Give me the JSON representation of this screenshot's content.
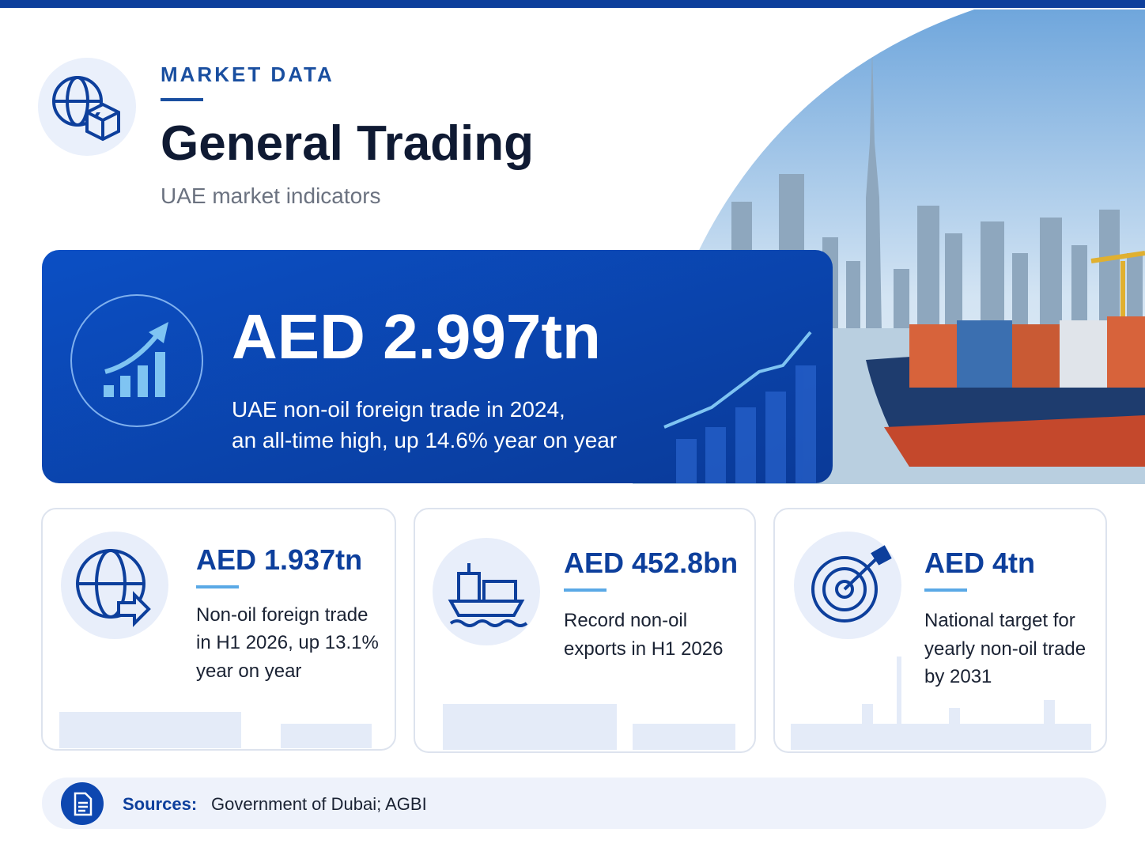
{
  "header": {
    "eyebrow": "MARKET DATA",
    "title": "General Trading",
    "subtitle": "UAE market indicators"
  },
  "hero": {
    "value": "AED 2.997tn",
    "description_lines": [
      "UAE non-oil foreign trade in 2024,",
      "an all-time high, up 14.6% year on year"
    ]
  },
  "cards": [
    {
      "value": "AED 1.937tn",
      "description_lines": [
        "Non-oil foreign trade",
        "in H1 2026, up 13.1%",
        "year on year"
      ]
    },
    {
      "value": "AED 452.8bn",
      "description_lines": [
        "Record non-oil",
        "exports in H1 2026"
      ]
    },
    {
      "value": "AED 4tn",
      "description_lines": [
        "National target for",
        "yearly non-oil trade",
        "by 2031"
      ]
    }
  ],
  "sources": {
    "label": "Sources:",
    "text": "Government of Dubai; AGBI"
  }
}
